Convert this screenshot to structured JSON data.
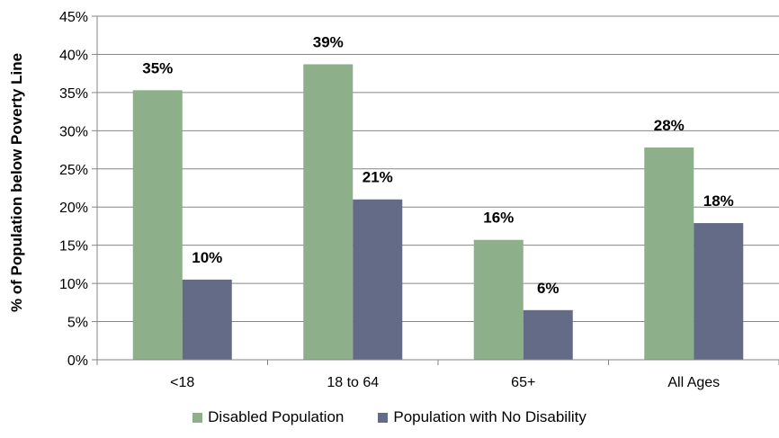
{
  "chart_data": {
    "type": "bar",
    "categories": [
      "<18",
      "18 to 64",
      "65+",
      "All Ages"
    ],
    "series": [
      {
        "name": "Disabled Population",
        "values": [
          35.3,
          38.7,
          15.7,
          27.8
        ],
        "labels": [
          "35%",
          "39%",
          "16%",
          "28%"
        ],
        "color": "#8db08a"
      },
      {
        "name": "Population with No Disability",
        "values": [
          10.5,
          21.0,
          6.5,
          17.9
        ],
        "labels": [
          "10%",
          "21%",
          "6%",
          "18%"
        ],
        "color": "#646b87"
      }
    ],
    "ylabel": "% of Population below Poverty Line",
    "ylim": [
      0,
      45
    ],
    "yticks": [
      "0%",
      "5%",
      "10%",
      "15%",
      "20%",
      "25%",
      "30%",
      "35%",
      "40%",
      "45%"
    ],
    "ytick_values": [
      0,
      5,
      10,
      15,
      20,
      25,
      30,
      35,
      40,
      45
    ],
    "grid": true,
    "legend_position": "bottom",
    "gridline_color": "#868686"
  }
}
